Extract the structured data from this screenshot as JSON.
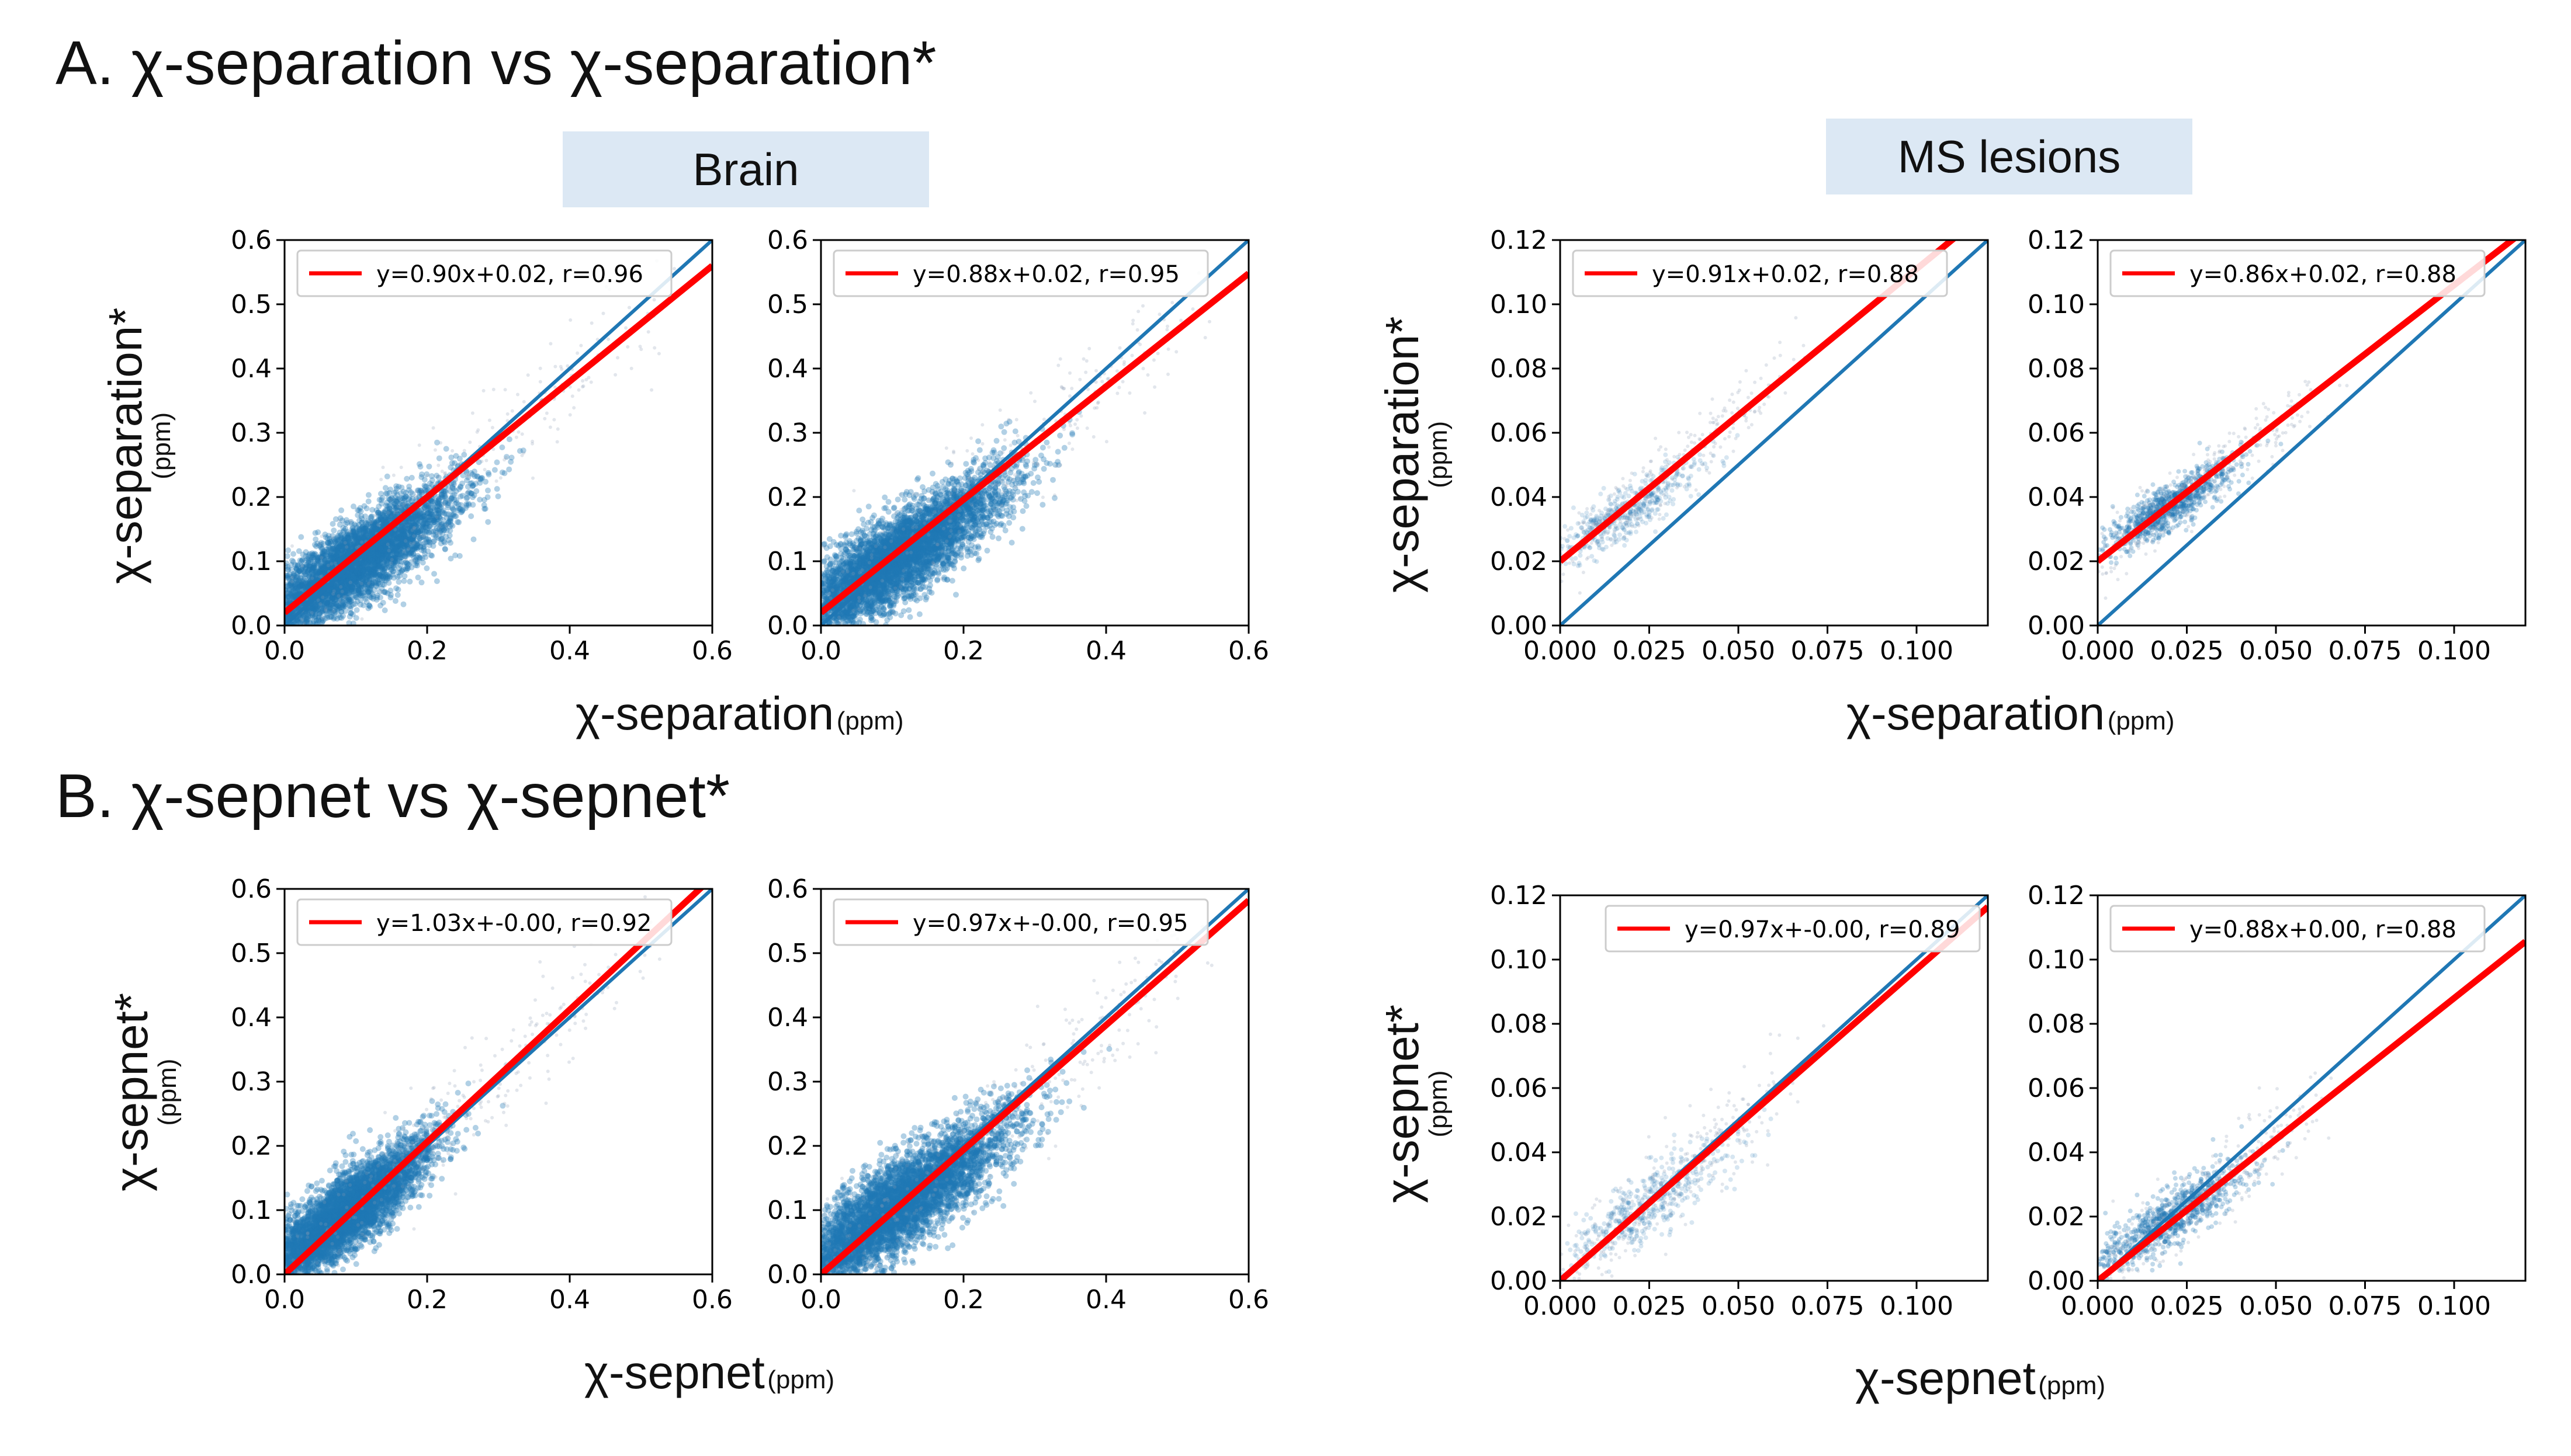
{
  "sections": {
    "a": {
      "title": "A. χ-separation vs χ-separation*"
    },
    "b": {
      "title": "B. χ-sepnet vs χ-sepnet*"
    }
  },
  "group_labels": {
    "brain": "Brain",
    "ms": "MS lesions"
  },
  "axis_titles": {
    "a_x": "χ-separation",
    "a_y": "χ-separation*",
    "b_x": "χ-sepnet",
    "b_y": "χ-sepnet*",
    "unit": "(ppm)"
  },
  "colors": {
    "identity": "#1f77b4",
    "fit": "#ff0000",
    "scatter": "#1f77b4",
    "label_bg": "#dce8f4"
  },
  "chart_data": [
    {
      "id": "A-brain-1",
      "type": "scatter",
      "title": "",
      "xlabel": "χ-separation (ppm)",
      "ylabel": "χ-separation* (ppm)",
      "xlim": [
        0,
        0.6
      ],
      "ylim": [
        0,
        0.6
      ],
      "xticks": [
        0,
        0.2,
        0.4,
        0.6
      ],
      "yticks": [
        0,
        0.1,
        0.2,
        0.3,
        0.4,
        0.5,
        0.6
      ],
      "tick_decimals": 1,
      "fit": {
        "slope": 0.9,
        "intercept": 0.02,
        "r": 0.96
      },
      "legend": "y=0.90x+0.02, r=0.96",
      "legend_loc": "top-left",
      "cloud": {
        "center": [
          0.09,
          0.09
        ],
        "spread_x": 0.075,
        "spread_y": 0.07,
        "max": 0.5,
        "density": "dense"
      }
    },
    {
      "id": "A-brain-2",
      "type": "scatter",
      "title": "",
      "xlabel": "χ-separation (ppm)",
      "ylabel": "χ-separation* (ppm)",
      "xlim": [
        0,
        0.6
      ],
      "ylim": [
        0,
        0.6
      ],
      "xticks": [
        0,
        0.2,
        0.4,
        0.6
      ],
      "yticks": [
        0,
        0.1,
        0.2,
        0.3,
        0.4,
        0.5,
        0.6
      ],
      "tick_decimals": 1,
      "fit": {
        "slope": 0.88,
        "intercept": 0.02,
        "r": 0.95
      },
      "legend": "y=0.88x+0.02, r=0.95",
      "legend_loc": "top-left",
      "cloud": {
        "center": [
          0.1,
          0.1
        ],
        "spread_x": 0.08,
        "spread_y": 0.075,
        "max": 0.5,
        "density": "dense"
      }
    },
    {
      "id": "A-ms-1",
      "type": "scatter",
      "title": "",
      "xlabel": "χ-separation (ppm)",
      "ylabel": "χ-separation* (ppm)",
      "xlim": [
        0,
        0.12
      ],
      "ylim": [
        0,
        0.12
      ],
      "xticks": [
        0,
        0.025,
        0.05,
        0.075,
        0.1
      ],
      "yticks": [
        0,
        0.02,
        0.04,
        0.06,
        0.08,
        0.1,
        0.12
      ],
      "tick_decimals": [
        3,
        2
      ],
      "fit": {
        "slope": 0.91,
        "intercept": 0.02,
        "r": 0.88
      },
      "legend": "y=0.91x+0.02, r=0.88",
      "legend_loc": "top-left",
      "cloud": {
        "center": [
          0.018,
          0.035
        ],
        "spread_x": 0.01,
        "spread_y": 0.009,
        "max": 0.06,
        "density": "sparse"
      }
    },
    {
      "id": "A-ms-2",
      "type": "scatter",
      "title": "",
      "xlabel": "χ-separation (ppm)",
      "ylabel": "χ-separation* (ppm)",
      "xlim": [
        0,
        0.12
      ],
      "ylim": [
        0,
        0.12
      ],
      "xticks": [
        0,
        0.025,
        0.05,
        0.075,
        0.1
      ],
      "yticks": [
        0,
        0.02,
        0.04,
        0.06,
        0.08,
        0.1,
        0.12
      ],
      "tick_decimals": [
        3,
        2
      ],
      "fit": {
        "slope": 0.86,
        "intercept": 0.02,
        "r": 0.88
      },
      "legend": "y=0.86x+0.02, r=0.88",
      "legend_loc": "top-left",
      "cloud": {
        "center": [
          0.02,
          0.037
        ],
        "spread_x": 0.009,
        "spread_y": 0.008,
        "max": 0.06,
        "density": "medium"
      }
    },
    {
      "id": "B-brain-1",
      "type": "scatter",
      "title": "",
      "xlabel": "χ-sepnet (ppm)",
      "ylabel": "χ-sepnet* (ppm)",
      "xlim": [
        0,
        0.6
      ],
      "ylim": [
        0,
        0.6
      ],
      "xticks": [
        0,
        0.2,
        0.4,
        0.6
      ],
      "yticks": [
        0,
        0.1,
        0.2,
        0.3,
        0.4,
        0.5,
        0.6
      ],
      "tick_decimals": 1,
      "fit": {
        "slope": 1.03,
        "intercept": -0.0,
        "r": 0.92
      },
      "legend": "y=1.03x+-0.00, r=0.92",
      "legend_loc": "top-left",
      "cloud": {
        "center": [
          0.08,
          0.09
        ],
        "spread_x": 0.06,
        "spread_y": 0.065,
        "max": 0.5,
        "density": "dense"
      }
    },
    {
      "id": "B-brain-2",
      "type": "scatter",
      "title": "",
      "xlabel": "χ-sepnet (ppm)",
      "ylabel": "χ-sepnet* (ppm)",
      "xlim": [
        0,
        0.6
      ],
      "ylim": [
        0,
        0.6
      ],
      "xticks": [
        0,
        0.2,
        0.4,
        0.6
      ],
      "yticks": [
        0,
        0.1,
        0.2,
        0.3,
        0.4,
        0.5,
        0.6
      ],
      "tick_decimals": 1,
      "fit": {
        "slope": 0.97,
        "intercept": -0.0,
        "r": 0.95
      },
      "legend": "y=0.97x+-0.00, r=0.95",
      "legend_loc": "top-left",
      "cloud": {
        "center": [
          0.1,
          0.1
        ],
        "spread_x": 0.08,
        "spread_y": 0.08,
        "max": 0.5,
        "density": "dense"
      }
    },
    {
      "id": "B-ms-1",
      "type": "scatter",
      "title": "",
      "xlabel": "χ-sepnet (ppm)",
      "ylabel": "χ-sepnet* (ppm)",
      "xlim": [
        0,
        0.12
      ],
      "ylim": [
        0,
        0.12
      ],
      "xticks": [
        0,
        0.025,
        0.05,
        0.075,
        0.1
      ],
      "yticks": [
        0,
        0.02,
        0.04,
        0.06,
        0.08,
        0.1,
        0.12
      ],
      "tick_decimals": [
        3,
        2
      ],
      "fit": {
        "slope": 0.97,
        "intercept": -0.0,
        "r": 0.89
      },
      "legend": "y=0.97x+-0.00, r=0.89",
      "legend_loc": "top-right",
      "cloud": {
        "center": [
          0.025,
          0.024
        ],
        "spread_x": 0.013,
        "spread_y": 0.012,
        "max": 0.06,
        "density": "sparse"
      }
    },
    {
      "id": "B-ms-2",
      "type": "scatter",
      "title": "",
      "xlabel": "χ-sepnet (ppm)",
      "ylabel": "χ-sepnet* (ppm)",
      "xlim": [
        0,
        0.12
      ],
      "ylim": [
        0,
        0.12
      ],
      "xticks": [
        0,
        0.025,
        0.05,
        0.075,
        0.1
      ],
      "yticks": [
        0,
        0.02,
        0.04,
        0.06,
        0.08,
        0.1,
        0.12
      ],
      "tick_decimals": [
        3,
        2
      ],
      "fit": {
        "slope": 0.88,
        "intercept": 0.0,
        "r": 0.88
      },
      "legend": "y=0.88x+0.00, r=0.88",
      "legend_loc": "top-left",
      "cloud": {
        "center": [
          0.02,
          0.019
        ],
        "spread_x": 0.011,
        "spread_y": 0.01,
        "max": 0.06,
        "density": "medium"
      }
    }
  ]
}
